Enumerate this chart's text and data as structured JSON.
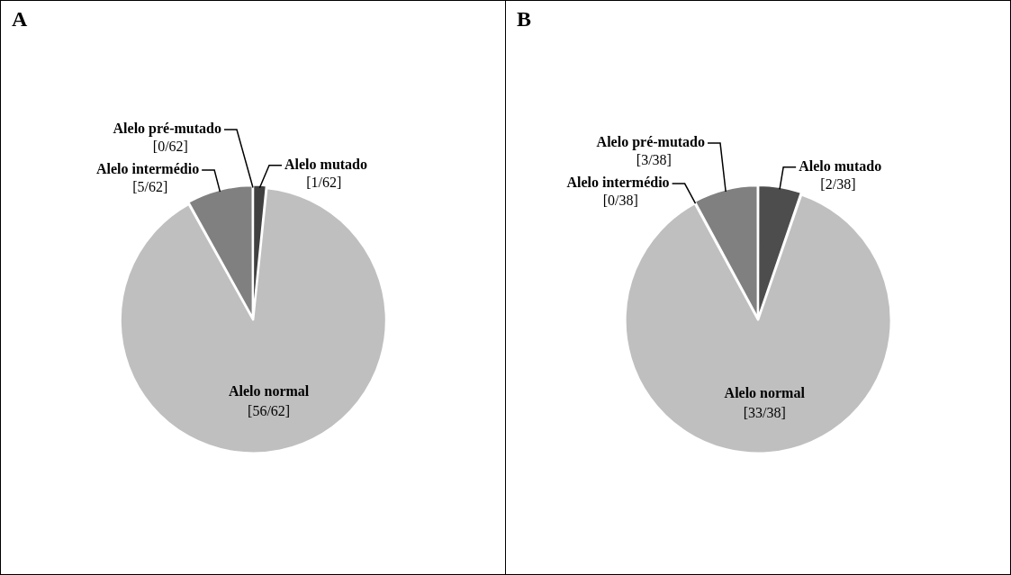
{
  "chart_data": [
    {
      "type": "pie",
      "title": "A",
      "categories": [
        "Alelo mutado",
        "Alelo normal",
        "Alelo intermédio",
        "Alelo pré-mutado"
      ],
      "values": [
        1,
        56,
        5,
        0
      ],
      "colors": [
        "#404040",
        "#bfbfbf",
        "#808080",
        "#595959"
      ],
      "value_labels": [
        "[1/62]",
        "[56/62]",
        "[5/62]",
        "[0/62]"
      ]
    },
    {
      "type": "pie",
      "title": "B",
      "categories": [
        "Alelo mutado",
        "Alelo normal",
        "Alelo intermédio",
        "Alelo pré-mutado"
      ],
      "values": [
        2,
        33,
        0,
        3
      ],
      "colors": [
        "#4d4d4d",
        "#bfbfbf",
        "#a6a6a6",
        "#808080"
      ],
      "value_labels": [
        "[2/38]",
        "[33/38]",
        "[0/38]",
        "[3/38]"
      ]
    }
  ]
}
